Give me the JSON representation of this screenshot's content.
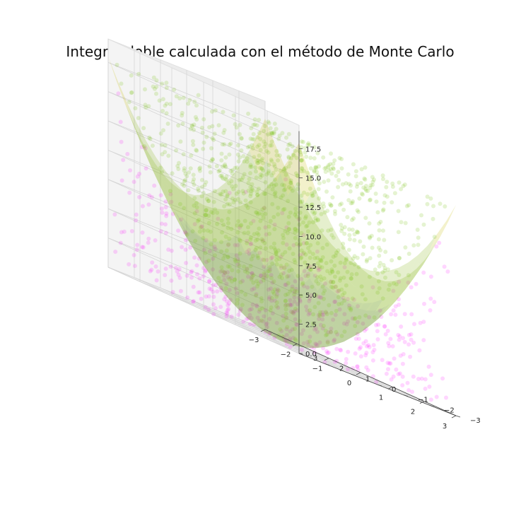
{
  "chart_data": {
    "type": "scatter3d",
    "title": "Integral doble calculada con el método de Monte Carlo",
    "xlabel": "",
    "ylabel": "",
    "zlabel": "",
    "x_ticks": [
      -3,
      -2,
      -1,
      0,
      1,
      2,
      3
    ],
    "y_ticks": [
      -3,
      -2,
      -1,
      0,
      1,
      2,
      3
    ],
    "z_ticks": [
      0.0,
      2.5,
      5.0,
      7.5,
      10.0,
      12.5,
      15.0,
      17.5
    ],
    "x_tick_labels": [
      "−3",
      "−2",
      "−1",
      "0",
      "1",
      "2",
      "3"
    ],
    "y_tick_labels": [
      "−3",
      "−2",
      "−1",
      "0",
      "1",
      "2",
      "3"
    ],
    "z_tick_labels": [
      "0.0",
      "2.5",
      "5.0",
      "7.5",
      "10.0",
      "12.5",
      "15.0",
      "17.5"
    ],
    "xlim": [
      -3,
      3
    ],
    "ylim": [
      -3,
      3
    ],
    "zlim": [
      0,
      18
    ],
    "surface_function": "z = x^2 + y^2",
    "grid": true,
    "series": [
      {
        "points": "above surface (z > x^2 + y^2)",
        "color": "#7fc41a"
      },
      {
        "points": "below surface (z < x^2 + y^2)",
        "color": "#ff00ff"
      }
    ],
    "surface_colors": [
      "#5a8c10",
      "#8ab81a",
      "#c8c010"
    ]
  }
}
